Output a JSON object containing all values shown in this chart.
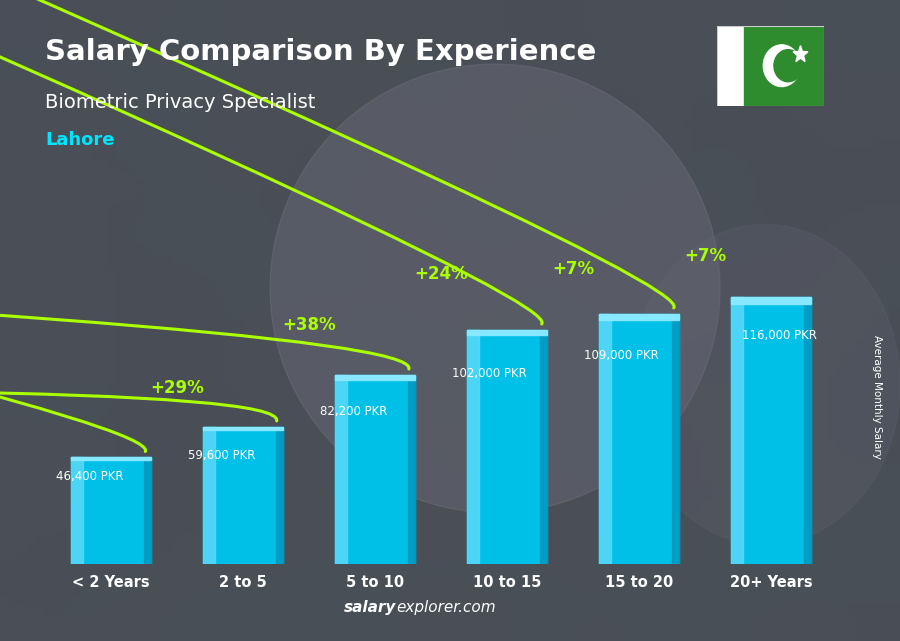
{
  "title": "Salary Comparison By Experience",
  "subtitle": "Biometric Privacy Specialist",
  "city": "Lahore",
  "categories": [
    "< 2 Years",
    "2 to 5",
    "5 to 10",
    "10 to 15",
    "15 to 20",
    "20+ Years"
  ],
  "values": [
    46400,
    59600,
    82200,
    102000,
    109000,
    116000
  ],
  "value_labels": [
    "46,400 PKR",
    "59,600 PKR",
    "82,200 PKR",
    "102,000 PKR",
    "109,000 PKR",
    "116,000 PKR"
  ],
  "pct_labels": [
    "+29%",
    "+38%",
    "+24%",
    "+7%",
    "+7%"
  ],
  "bar_color_main": "#00C0E8",
  "bar_color_left": "#55D8F8",
  "bar_color_top": "#88E8FF",
  "bar_color_dark": "#0090B8",
  "title_color": "#FFFFFF",
  "subtitle_color": "#FFFFFF",
  "city_color": "#00E5FF",
  "pct_color": "#AAFF00",
  "value_label_color": "#FFFFFF",
  "bg_color": "#3a3a4a",
  "watermark": "salaryexplorer.com",
  "watermark_bold": "salary",
  "ylabel_text": "Average Monthly Salary",
  "ylim": [
    0,
    145000
  ],
  "bar_width": 0.6,
  "flag_green": "#2E8B2E",
  "flag_white": "#FFFFFF"
}
